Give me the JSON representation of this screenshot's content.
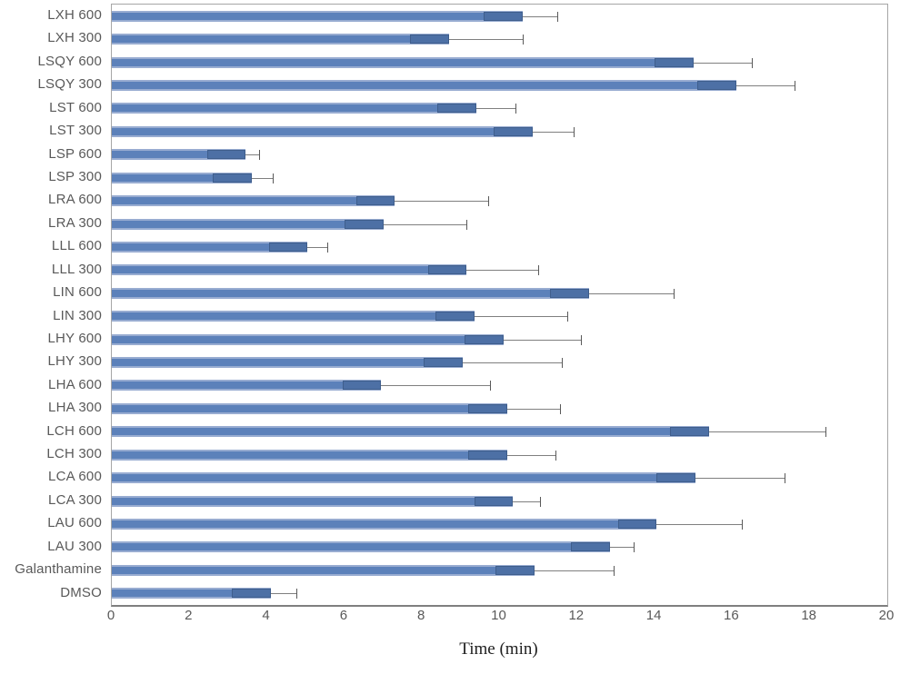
{
  "chart_data": {
    "type": "bar",
    "orientation": "horizontal",
    "title": "",
    "xlabel": "Time (min)",
    "ylabel": "",
    "xlim": [
      0,
      20
    ],
    "xticks": [
      0,
      2,
      4,
      6,
      8,
      10,
      12,
      14,
      16,
      18,
      20
    ],
    "grid": false,
    "legend": "none",
    "categories": [
      "LXH 600",
      "LXH 300",
      "LSQY 600",
      "LSQY 300",
      "LST 600",
      "LST 300",
      "LSP 600",
      "LSP 300",
      "LRA 600",
      "LRA 300",
      "LLL 600",
      "LLL 300",
      "LIN 600",
      "LIN 300",
      "LHY 600",
      "LHY 300",
      "LHA 600",
      "LHA 300",
      "LCH 600",
      "LCH 300",
      "LCA 600",
      "LCA 300",
      "LAU 600",
      "LAU 300",
      "Galanthamine",
      "DMSO"
    ],
    "series": [
      {
        "name": "Time (min)",
        "values": [
          10.6,
          8.7,
          15.0,
          16.1,
          9.4,
          10.85,
          3.45,
          3.6,
          7.3,
          7.0,
          5.05,
          9.15,
          12.3,
          9.35,
          10.1,
          9.05,
          6.95,
          10.2,
          15.4,
          10.2,
          15.05,
          10.35,
          14.05,
          12.85,
          10.9,
          4.1
        ]
      }
    ],
    "error_plus": [
      0.9,
      1.9,
      1.5,
      1.5,
      1.0,
      1.05,
      0.35,
      0.55,
      2.4,
      2.15,
      0.5,
      1.85,
      2.2,
      2.4,
      2.0,
      2.55,
      2.8,
      1.35,
      3.0,
      1.25,
      2.3,
      0.7,
      2.2,
      0.6,
      2.05,
      0.65
    ],
    "error_minus_inner_band": 1.0
  },
  "colors": {
    "bar_fill": "#5C81BA",
    "bar_edge": "#98ACD1",
    "band_fill": "#4D70A5",
    "band_edge": "#3F5E8C",
    "error_line": "#7F7F7F",
    "error_cap": "#595959",
    "axis_border": "#A6A6A6",
    "axis_line": "#7F7F7F",
    "tick_color": "#595959"
  }
}
